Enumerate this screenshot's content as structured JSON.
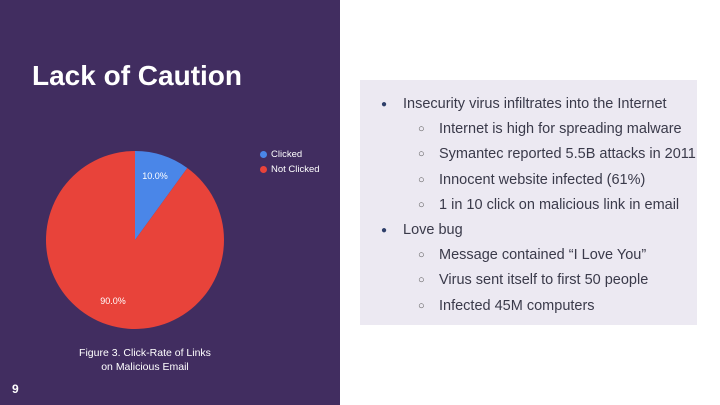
{
  "slide": {
    "title": "Lack of Caution",
    "page_number": "9",
    "caption_line1": "Figure 3. Click-Rate of Links",
    "caption_line2": "on Malicious Email",
    "background": "#412d60"
  },
  "chart_data": {
    "type": "pie",
    "categories": [
      "Clicked",
      "Not Clicked"
    ],
    "values": [
      10.0,
      90.0
    ],
    "labels": [
      "10.0%",
      "90.0%"
    ],
    "colors": [
      "#4a86e8",
      "#e8433a"
    ],
    "legend_placement": "right"
  },
  "bullets": [
    {
      "level": 1,
      "text": "Insecurity virus infiltrates into the Internet"
    },
    {
      "level": 2,
      "text": "Internet is high for spreading malware"
    },
    {
      "level": 2,
      "text": "Symantec reported 5.5B attacks in 2011"
    },
    {
      "level": 2,
      "text": "Innocent website infected (61%)"
    },
    {
      "level": 2,
      "text": "1 in 10 click on malicious link in email"
    },
    {
      "level": 1,
      "text": "Love bug"
    },
    {
      "level": 2,
      "text": "Message contained “I Love You”"
    },
    {
      "level": 2,
      "text": "Virus sent itself to first 50 people"
    },
    {
      "level": 2,
      "text": "Infected 45M computers"
    }
  ]
}
